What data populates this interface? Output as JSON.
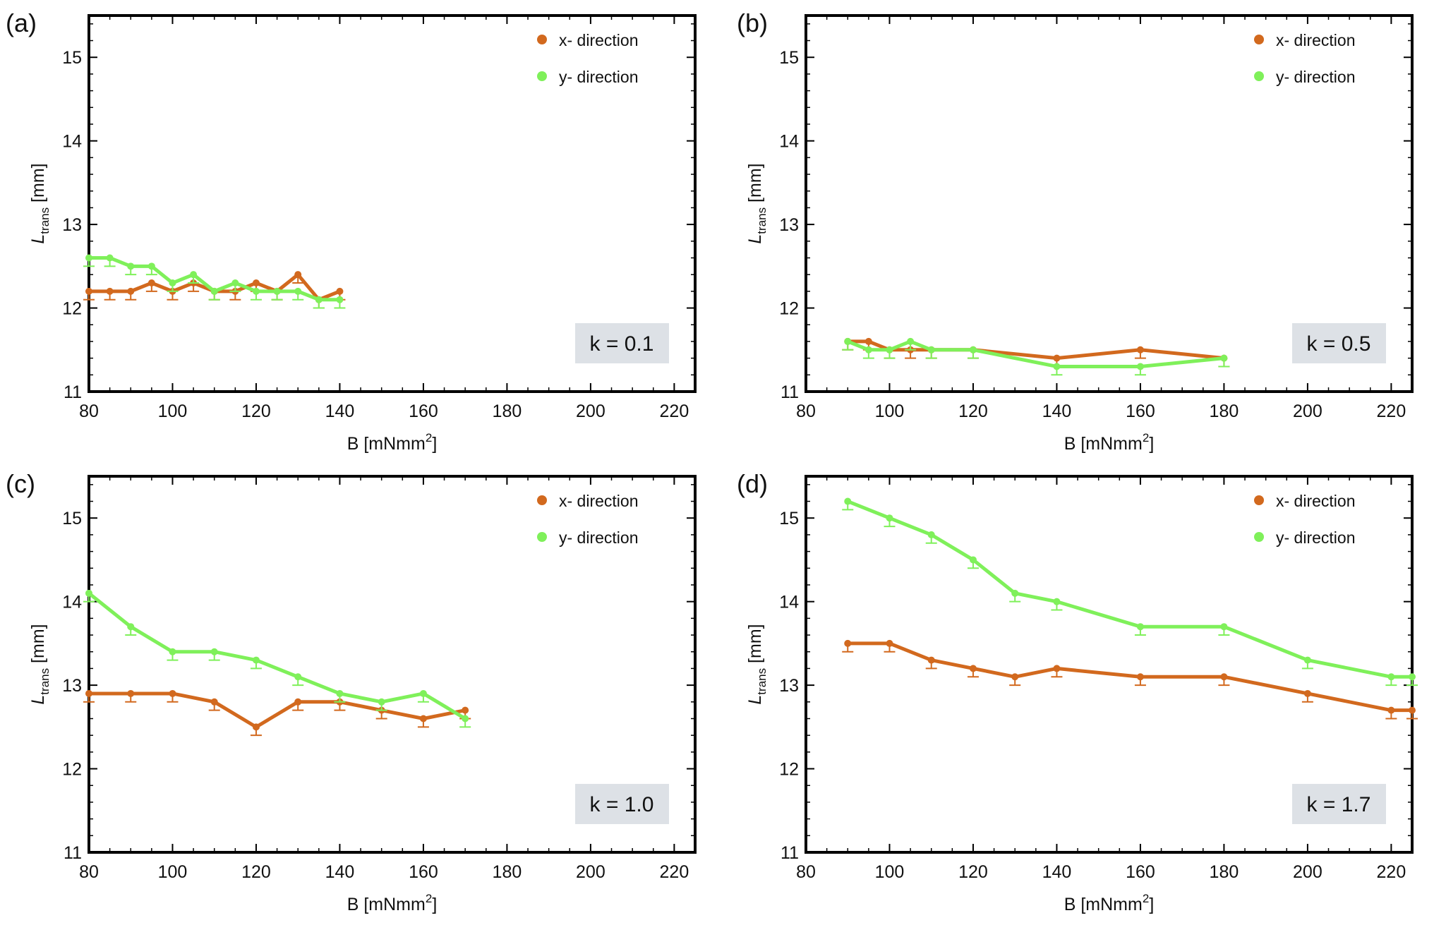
{
  "figure": {
    "x_tick_labels": [
      "80",
      "100",
      "120",
      "140",
      "160",
      "180",
      "200",
      "220"
    ],
    "y_tick_labels": [
      "11",
      "12",
      "13",
      "14",
      "15"
    ],
    "legend": {
      "x": "x- direction",
      "y": "y- direction"
    },
    "ylabel": {
      "main": "L",
      "sub": "trans",
      "unit": "[mm]"
    },
    "xlabel": {
      "main": "B",
      "unit": "[mNmm",
      "sup": "2",
      "close": "]"
    },
    "colors": {
      "x_series": "#D2691E",
      "y_series": "#7FF05A",
      "k_box": "#DDE1E6"
    }
  },
  "chart_data": [
    {
      "type": "line",
      "panel_label": "(a)",
      "k_label": "k = 0.1",
      "xlim": [
        80,
        225
      ],
      "ylim": [
        11,
        15.5
      ],
      "series": [
        {
          "name": "x- direction",
          "x": [
            80,
            85,
            90,
            95,
            100,
            105,
            110,
            115,
            120,
            125,
            130,
            135,
            140
          ],
          "y": [
            12.2,
            12.2,
            12.2,
            12.3,
            12.2,
            12.3,
            12.2,
            12.2,
            12.3,
            12.2,
            12.4,
            12.1,
            12.2
          ],
          "err": [
            0.1,
            0.1,
            0.1,
            0.1,
            0.1,
            0.1,
            0.1,
            0.1,
            0.1,
            0.1,
            0.1,
            0.1,
            0.1
          ]
        },
        {
          "name": "y- direction",
          "x": [
            80,
            85,
            90,
            95,
            100,
            105,
            110,
            115,
            120,
            125,
            130,
            135,
            140
          ],
          "y": [
            12.6,
            12.6,
            12.5,
            12.5,
            12.3,
            12.4,
            12.2,
            12.3,
            12.2,
            12.2,
            12.2,
            12.1,
            12.1
          ],
          "err": [
            0.1,
            0.1,
            0.1,
            0.1,
            0.1,
            0.1,
            0.1,
            0.1,
            0.1,
            0.1,
            0.1,
            0.1,
            0.1
          ]
        }
      ]
    },
    {
      "type": "line",
      "panel_label": "(b)",
      "k_label": "k = 0.5",
      "xlim": [
        80,
        225
      ],
      "ylim": [
        11,
        15.5
      ],
      "series": [
        {
          "name": "x- direction",
          "x": [
            90,
            95,
            100,
            105,
            110,
            120,
            140,
            160,
            180
          ],
          "y": [
            11.6,
            11.6,
            11.5,
            11.5,
            11.5,
            11.5,
            11.4,
            11.5,
            11.4
          ],
          "err": [
            0.1,
            0.1,
            0.1,
            0.1,
            0.1,
            0.1,
            0.1,
            0.1,
            0.1
          ]
        },
        {
          "name": "y- direction",
          "x": [
            90,
            95,
            100,
            105,
            110,
            120,
            140,
            160,
            180
          ],
          "y": [
            11.6,
            11.5,
            11.5,
            11.6,
            11.5,
            11.5,
            11.3,
            11.3,
            11.4
          ],
          "err": [
            0.1,
            0.1,
            0.1,
            0.1,
            0.1,
            0.1,
            0.1,
            0.1,
            0.1
          ]
        }
      ]
    },
    {
      "type": "line",
      "panel_label": "(c)",
      "k_label": "k = 1.0",
      "xlim": [
        80,
        225
      ],
      "ylim": [
        11,
        15.5
      ],
      "series": [
        {
          "name": "x- direction",
          "x": [
            80,
            90,
            100,
            110,
            120,
            130,
            140,
            150,
            160,
            170
          ],
          "y": [
            12.9,
            12.9,
            12.9,
            12.8,
            12.5,
            12.8,
            12.8,
            12.7,
            12.6,
            12.7
          ],
          "err": [
            0.1,
            0.1,
            0.1,
            0.1,
            0.1,
            0.1,
            0.1,
            0.1,
            0.1,
            0.1
          ]
        },
        {
          "name": "y- direction",
          "x": [
            80,
            90,
            100,
            110,
            120,
            130,
            140,
            150,
            160,
            170
          ],
          "y": [
            14.1,
            13.7,
            13.4,
            13.4,
            13.3,
            13.1,
            12.9,
            12.8,
            12.9,
            12.6
          ],
          "err": [
            0.1,
            0.1,
            0.1,
            0.1,
            0.1,
            0.1,
            0.1,
            0.1,
            0.1,
            0.1
          ]
        }
      ]
    },
    {
      "type": "line",
      "panel_label": "(d)",
      "k_label": "k = 1.7",
      "xlim": [
        80,
        225
      ],
      "ylim": [
        11,
        15.5
      ],
      "series": [
        {
          "name": "x- direction",
          "x": [
            90,
            100,
            110,
            120,
            130,
            140,
            160,
            180,
            200,
            220,
            225
          ],
          "y": [
            13.5,
            13.5,
            13.3,
            13.2,
            13.1,
            13.2,
            13.1,
            13.1,
            12.9,
            12.7,
            12.7
          ],
          "err": [
            0.1,
            0.1,
            0.1,
            0.1,
            0.1,
            0.1,
            0.1,
            0.1,
            0.1,
            0.1,
            0.1
          ]
        },
        {
          "name": "y- direction",
          "x": [
            90,
            100,
            110,
            120,
            130,
            140,
            160,
            180,
            200,
            220,
            225
          ],
          "y": [
            15.2,
            15.0,
            14.8,
            14.5,
            14.1,
            14.0,
            13.7,
            13.7,
            13.3,
            13.1,
            13.1
          ],
          "err": [
            0.1,
            0.1,
            0.1,
            0.1,
            0.1,
            0.1,
            0.1,
            0.1,
            0.1,
            0.1,
            0.1
          ]
        }
      ]
    }
  ]
}
